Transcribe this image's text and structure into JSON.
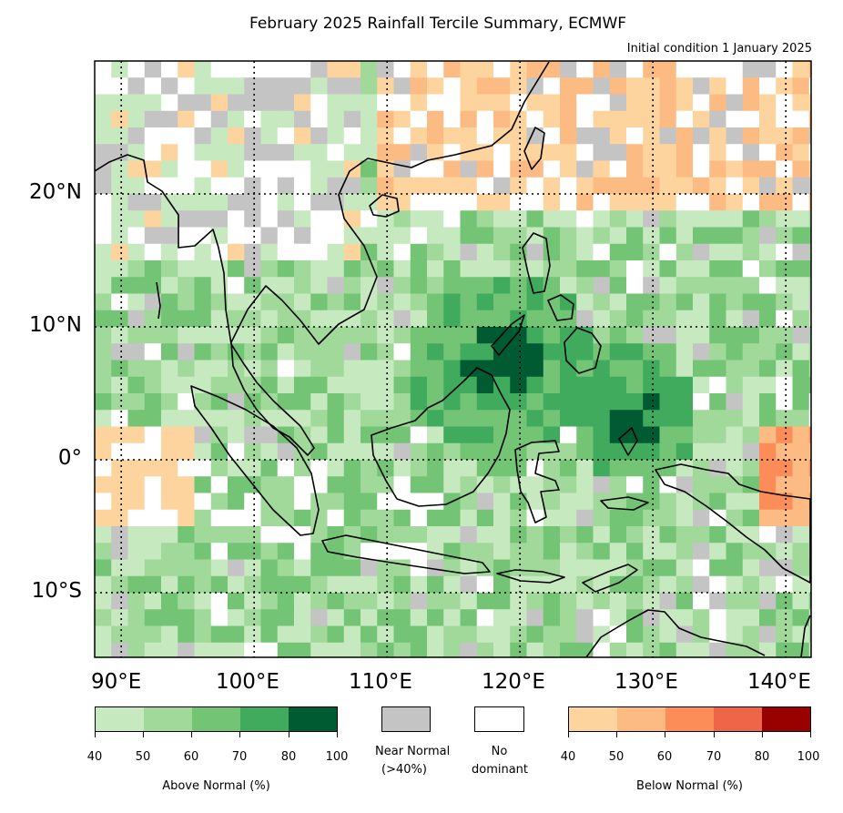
{
  "title": "February 2025 Rainfall Tercile Summary, ECMWF",
  "subtitle": "Initial condition 1 January 2025",
  "lat_labels": [
    "20°N",
    "10°N",
    "0°",
    "10°S"
  ],
  "lon_labels": [
    "90°E",
    "100°E",
    "110°E",
    "120°E",
    "130°E",
    "140°E"
  ],
  "colors": {
    "above": [
      "#c7e9c0",
      "#a1d99b",
      "#74c476",
      "#41ab5d",
      "#005a32"
    ],
    "near_normal": "#c4c4c4",
    "no_dominant": "#ffffff",
    "below": [
      "#fdd49e",
      "#fdbb84",
      "#fc8d59",
      "#ef6548",
      "#990000"
    ]
  },
  "legend": {
    "above_ticks": [
      "40",
      "50",
      "60",
      "70",
      "80",
      "100"
    ],
    "above_label": "Above Normal (%)",
    "near_normal_label_1": "Near Normal",
    "near_normal_label_2": "(>40%)",
    "no_dominant_label_1": "No",
    "no_dominant_label_2": "dominant",
    "below_ticks": [
      "40",
      "50",
      "60",
      "70",
      "80",
      "100"
    ],
    "below_label": "Below Normal (%)"
  }
}
